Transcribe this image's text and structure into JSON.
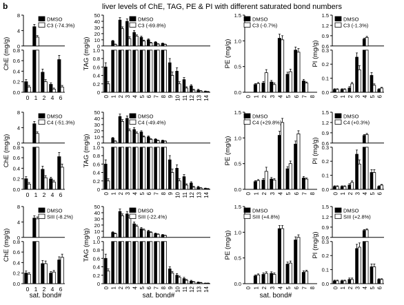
{
  "figure": {
    "panel_letter": "b",
    "title": "liver levels of ChE, TAG, PE & PI with different saturated bond numbers",
    "xlabel": "sat. bond#"
  },
  "colors": {
    "dmso": "#000000",
    "treatment": "#ffffff",
    "axis": "#000000"
  },
  "chart_data": [
    {
      "type": "bar",
      "row": 0,
      "col": 0,
      "ylabel": "ChE (mg/g)",
      "categories": [
        "0",
        "1",
        "2",
        "4",
        "6"
      ],
      "series": [
        {
          "name": "DMSO",
          "values": [
            0.2,
            5.0,
            0.38,
            0.15,
            0.62
          ]
        },
        {
          "name": "C3 (-74.3%)",
          "values": [
            0.1,
            2.3,
            0.2,
            0.06,
            0.1
          ]
        }
      ],
      "errors": [
        [
          0.04,
          0.6,
          0.06,
          0.03,
          0.08
        ],
        [
          0.03,
          0.4,
          0.04,
          0.02,
          0.03
        ]
      ],
      "broken_axis": true,
      "lower": {
        "ylim": [
          0,
          0.8
        ],
        "ticks": [
          "0.0",
          "0.2",
          "0.4",
          "0.6",
          "0.8"
        ]
      },
      "upper": {
        "ylim": [
          0,
          8
        ],
        "ticks": [
          "0",
          "4",
          "8"
        ]
      }
    },
    {
      "type": "bar",
      "row": 0,
      "col": 1,
      "ylabel": "TAG (mg/g)",
      "categories": [
        "0",
        "1",
        "2",
        "3",
        "4",
        "5",
        "6",
        "7",
        "8",
        "9",
        "10",
        "11",
        "12",
        "13",
        "14"
      ],
      "series": [
        {
          "name": "DMSO",
          "values": [
            0.6,
            8,
            42,
            40,
            22,
            14,
            10,
            6,
            4,
            0.7,
            0.5,
            0.3,
            0.15,
            0.05,
            0.02
          ]
        },
        {
          "name": "C3 (-69.8%)",
          "values": [
            0.2,
            2.5,
            28,
            12,
            16,
            8,
            5,
            3,
            2.5,
            0.4,
            0.2,
            0.1,
            0.05,
            0.03,
            0.01
          ]
        }
      ],
      "errors": [
        [
          0.1,
          1,
          4,
          4,
          3,
          2,
          1.5,
          1,
          0.8,
          0.1,
          0.08,
          0.05,
          0.03,
          0.02,
          0.01
        ],
        [
          0.05,
          0.6,
          3,
          3,
          2,
          1.5,
          1,
          0.7,
          0.5,
          0.08,
          0.05,
          0.03,
          0.02,
          0.01,
          0.01
        ]
      ],
      "broken_axis": true,
      "lower": {
        "ylim": [
          0,
          1.0
        ],
        "ticks": [
          "0",
          "0.2",
          "0.4",
          "0.6",
          "0.8",
          "1.0"
        ]
      },
      "upper": {
        "ylim": [
          0,
          50
        ],
        "ticks": [
          "0",
          "10",
          "20",
          "30",
          "40",
          "50"
        ]
      }
    },
    {
      "type": "bar",
      "row": 0,
      "col": 2,
      "ylabel": "PE (mg/g)",
      "categories": [
        "0",
        "1",
        "2",
        "3",
        "4",
        "5",
        "6",
        "7",
        "8"
      ],
      "series": [
        {
          "name": "DMSO",
          "values": [
            0.0,
            0.15,
            0.18,
            0.2,
            1.05,
            0.35,
            0.82,
            0.22,
            0.0
          ]
        },
        {
          "name": "C3 (-0.7%)",
          "values": [
            0.0,
            0.17,
            0.38,
            0.15,
            1.02,
            0.4,
            0.78,
            0.18,
            0.0
          ]
        }
      ],
      "errors": [
        [
          0,
          0.02,
          0.03,
          0.03,
          0.08,
          0.04,
          0.06,
          0.03,
          0
        ],
        [
          0,
          0.02,
          0.06,
          0.03,
          0.08,
          0.05,
          0.07,
          0.02,
          0
        ]
      ],
      "broken_axis": false,
      "lower": {
        "ylim": [
          0,
          1.5
        ],
        "ticks": [
          "0.0",
          "0.5",
          "1.0",
          "1.5"
        ]
      }
    },
    {
      "type": "bar",
      "row": 0,
      "col": 3,
      "ylabel": "PI (mg/g)",
      "categories": [
        "0",
        "1",
        "2",
        "3",
        "4",
        "5",
        "6"
      ],
      "series": [
        {
          "name": "DMSO",
          "values": [
            0.02,
            0.02,
            0.03,
            0.25,
            0.8,
            0.12,
            0.02
          ]
        },
        {
          "name": "C3 (-1.3%)",
          "values": [
            0.02,
            0.02,
            0.06,
            0.16,
            0.85,
            0.05,
            0.03
          ]
        }
      ],
      "errors": [
        [
          0.005,
          0.005,
          0.01,
          0.03,
          0.03,
          0.02,
          0.005
        ],
        [
          0.005,
          0.005,
          0.01,
          0.03,
          0.03,
          0.01,
          0.005
        ]
      ],
      "broken_axis": true,
      "lower": {
        "ylim": [
          0,
          0.3
        ],
        "ticks": [
          "0.0",
          "0.1",
          "0.2",
          "0.3"
        ]
      },
      "upper": {
        "ylim": [
          0.6,
          1.5
        ],
        "ticks": [
          "0.6",
          "0.9",
          "1.2",
          "1.5"
        ]
      }
    },
    {
      "type": "bar",
      "row": 1,
      "col": 0,
      "ylabel": "ChE (mg/g)",
      "categories": [
        "0",
        "1",
        "2",
        "4",
        "6"
      ],
      "series": [
        {
          "name": "DMSO",
          "values": [
            0.2,
            5.0,
            0.38,
            0.2,
            0.62
          ]
        },
        {
          "name": "C4 (-51.3%)",
          "values": [
            0.1,
            2.5,
            0.22,
            0.14,
            0.42
          ]
        }
      ],
      "errors": [
        [
          0.04,
          0.6,
          0.06,
          0.03,
          0.08
        ],
        [
          0.03,
          0.4,
          0.04,
          0.03,
          0.06
        ]
      ],
      "broken_axis": true,
      "lower": {
        "ylim": [
          0,
          0.8
        ],
        "ticks": [
          "0.0",
          "0.2",
          "0.4",
          "0.6",
          "0.8"
        ]
      },
      "upper": {
        "ylim": [
          0,
          8
        ],
        "ticks": [
          "0",
          "4",
          "8"
        ]
      }
    },
    {
      "type": "bar",
      "row": 1,
      "col": 1,
      "ylabel": "TAG (mg/g)",
      "categories": [
        "0",
        "1",
        "2",
        "3",
        "4",
        "5",
        "6",
        "7",
        "8",
        "9",
        "10",
        "11",
        "12",
        "13",
        "14"
      ],
      "series": [
        {
          "name": "DMSO",
          "values": [
            0.6,
            8,
            43,
            40,
            22,
            18,
            10,
            6,
            4,
            0.7,
            0.5,
            0.3,
            0.15,
            0.05,
            0.02
          ]
        },
        {
          "name": "C4 (-49.4%)",
          "values": [
            0.2,
            3,
            35,
            20,
            16,
            10,
            6,
            4,
            3,
            0.4,
            0.2,
            0.1,
            0.05,
            0.03,
            0.01
          ]
        }
      ],
      "errors": [
        [
          0.1,
          1,
          4,
          4,
          3,
          2,
          1.5,
          1,
          0.8,
          0.1,
          0.08,
          0.05,
          0.03,
          0.02,
          0.01
        ],
        [
          0.05,
          0.6,
          3,
          3,
          2,
          1.5,
          1,
          0.7,
          0.5,
          0.08,
          0.05,
          0.03,
          0.02,
          0.01,
          0.01
        ]
      ],
      "broken_axis": true,
      "lower": {
        "ylim": [
          0,
          1.0
        ],
        "ticks": [
          "0",
          "0.2",
          "0.4",
          "0.6",
          "0.8",
          "1.0"
        ]
      },
      "upper": {
        "ylim": [
          0,
          50
        ],
        "ticks": [
          "0",
          "10",
          "20",
          "30",
          "40",
          "50"
        ]
      }
    },
    {
      "type": "bar",
      "row": 1,
      "col": 2,
      "ylabel": "PE (mg/g)",
      "categories": [
        "0",
        "1",
        "2",
        "3",
        "4",
        "5",
        "6",
        "7",
        "8"
      ],
      "series": [
        {
          "name": "DMSO",
          "values": [
            0.0,
            0.15,
            0.18,
            0.2,
            1.05,
            0.4,
            0.88,
            0.22,
            0.0
          ]
        },
        {
          "name": "C4 (+29.8%)",
          "values": [
            0.0,
            0.17,
            0.35,
            0.18,
            1.3,
            0.5,
            1.08,
            0.2,
            0.0
          ]
        }
      ],
      "errors": [
        [
          0,
          0.02,
          0.03,
          0.03,
          0.08,
          0.04,
          0.06,
          0.03,
          0
        ],
        [
          0,
          0.02,
          0.08,
          0.03,
          0.08,
          0.05,
          0.06,
          0.02,
          0
        ]
      ],
      "broken_axis": false,
      "lower": {
        "ylim": [
          0,
          1.5
        ],
        "ticks": [
          "0.0",
          "0.5",
          "1.0",
          "1.5"
        ]
      }
    },
    {
      "type": "bar",
      "row": 1,
      "col": 3,
      "ylabel": "PI (mg/g)",
      "categories": [
        "0",
        "1",
        "2",
        "3",
        "4",
        "5",
        "6"
      ],
      "series": [
        {
          "name": "DMSO",
          "values": [
            0.02,
            0.02,
            0.03,
            0.25,
            0.82,
            0.12,
            0.02
          ]
        },
        {
          "name": "C4 (+0.3%)",
          "values": [
            0.02,
            0.02,
            0.05,
            0.18,
            0.85,
            0.12,
            0.03
          ]
        }
      ],
      "errors": [
        [
          0.005,
          0.005,
          0.01,
          0.03,
          0.03,
          0.02,
          0.005
        ],
        [
          0.005,
          0.005,
          0.01,
          0.03,
          0.03,
          0.02,
          0.005
        ]
      ],
      "broken_axis": true,
      "lower": {
        "ylim": [
          0,
          0.3
        ],
        "ticks": [
          "0.0",
          "0.1",
          "0.2",
          "0.3"
        ]
      },
      "upper": {
        "ylim": [
          0.6,
          1.5
        ],
        "ticks": [
          "0.6",
          "0.9",
          "1.2",
          "1.5"
        ]
      }
    },
    {
      "type": "bar",
      "row": 2,
      "col": 0,
      "ylabel": "ChE (mg/g)",
      "categories": [
        "0",
        "1",
        "2",
        "4",
        "6"
      ],
      "series": [
        {
          "name": "DMSO",
          "values": [
            0.2,
            5.0,
            0.38,
            0.2,
            0.45
          ]
        },
        {
          "name": "SIII (-8.2%)",
          "values": [
            0.18,
            4.8,
            0.38,
            0.22,
            0.5
          ]
        }
      ],
      "errors": [
        [
          0.04,
          0.6,
          0.06,
          0.03,
          0.06
        ],
        [
          0.03,
          0.5,
          0.05,
          0.03,
          0.06
        ]
      ],
      "broken_axis": true,
      "lower": {
        "ylim": [
          0,
          0.8
        ],
        "ticks": [
          "0.0",
          "0.2",
          "0.4",
          "0.6",
          "0.8"
        ]
      },
      "upper": {
        "ylim": [
          0,
          8
        ],
        "ticks": [
          "0",
          "4",
          "8"
        ]
      }
    },
    {
      "type": "bar",
      "row": 2,
      "col": 1,
      "ylabel": "TAG (mg/g)",
      "categories": [
        "0",
        "1",
        "2",
        "3",
        "4",
        "5",
        "6",
        "7",
        "8",
        "9",
        "10",
        "11",
        "12",
        "13",
        "14"
      ],
      "series": [
        {
          "name": "DMSO",
          "values": [
            0.6,
            8,
            42,
            38,
            22,
            14,
            10,
            6,
            4,
            0.35,
            0.2,
            0.12,
            0.06,
            0.03,
            0.01
          ]
        },
        {
          "name": "SIII (-22.4%)",
          "values": [
            0.3,
            6,
            35,
            32,
            18,
            12,
            8,
            5,
            3,
            0.25,
            0.15,
            0.08,
            0.04,
            0.02,
            0.01
          ]
        }
      ],
      "errors": [
        [
          0.1,
          1,
          4,
          4,
          3,
          2,
          1.5,
          1,
          0.8,
          0.05,
          0.04,
          0.03,
          0.02,
          0.01,
          0.005
        ],
        [
          0.05,
          0.8,
          3,
          3,
          2,
          1.5,
          1,
          0.7,
          0.5,
          0.04,
          0.03,
          0.02,
          0.01,
          0.01,
          0.005
        ]
      ],
      "broken_axis": true,
      "lower": {
        "ylim": [
          0,
          1.0
        ],
        "ticks": [
          "0",
          "0.2",
          "0.4",
          "0.6",
          "0.8",
          "1.0"
        ]
      },
      "upper": {
        "ylim": [
          0,
          50
        ],
        "ticks": [
          "0",
          "10",
          "20",
          "30",
          "40",
          "50"
        ]
      }
    },
    {
      "type": "bar",
      "row": 2,
      "col": 2,
      "ylabel": "PE (mg/g)",
      "categories": [
        "0",
        "1",
        "2",
        "3",
        "4",
        "5",
        "6",
        "7",
        "8"
      ],
      "series": [
        {
          "name": "DMSO",
          "values": [
            0.0,
            0.15,
            0.18,
            0.2,
            1.07,
            0.38,
            0.85,
            0.22,
            0.0
          ]
        },
        {
          "name": "SIII (+4.8%)",
          "values": [
            0.0,
            0.17,
            0.2,
            0.18,
            1.07,
            0.4,
            0.9,
            0.24,
            0.0
          ]
        }
      ],
      "errors": [
        [
          0,
          0.02,
          0.03,
          0.03,
          0.06,
          0.04,
          0.06,
          0.03,
          0
        ],
        [
          0,
          0.02,
          0.03,
          0.03,
          0.06,
          0.04,
          0.05,
          0.02,
          0
        ]
      ],
      "broken_axis": false,
      "lower": {
        "ylim": [
          0,
          1.5
        ],
        "ticks": [
          "0.0",
          "0.5",
          "1.0",
          "1.5"
        ]
      }
    },
    {
      "type": "bar",
      "row": 2,
      "col": 3,
      "ylabel": "PI (mg/g)",
      "categories": [
        "0",
        "1",
        "2",
        "3",
        "4",
        "5",
        "6"
      ],
      "series": [
        {
          "name": "DMSO",
          "values": [
            0.02,
            0.02,
            0.03,
            0.25,
            0.8,
            0.12,
            0.03
          ]
        },
        {
          "name": "SIII (+2.8%)",
          "values": [
            0.02,
            0.02,
            0.03,
            0.26,
            0.82,
            0.12,
            0.03
          ]
        }
      ],
      "errors": [
        [
          0.005,
          0.005,
          0.01,
          0.03,
          0.03,
          0.02,
          0.005
        ],
        [
          0.005,
          0.005,
          0.01,
          0.03,
          0.03,
          0.02,
          0.005
        ]
      ],
      "broken_axis": true,
      "lower": {
        "ylim": [
          0,
          0.3
        ],
        "ticks": [
          "0.0",
          "0.1",
          "0.2",
          "0.3"
        ]
      },
      "upper": {
        "ylim": [
          0.6,
          1.5
        ],
        "ticks": [
          "0.6",
          "0.9",
          "1.2",
          "1.5"
        ]
      }
    }
  ]
}
